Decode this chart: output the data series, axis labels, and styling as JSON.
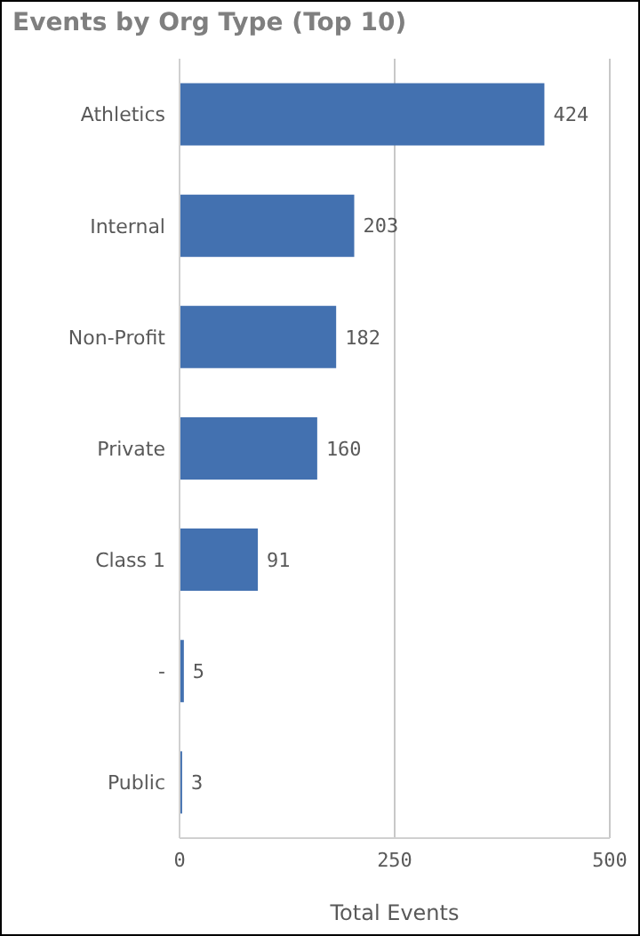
{
  "chart_data": {
    "type": "bar",
    "orientation": "horizontal",
    "title": "Events by Org Type (Top 10)",
    "xlabel": "Total Events",
    "categories": [
      "Athletics",
      "Internal",
      "Non-Profit",
      "Private",
      "Class 1",
      "-",
      "Public"
    ],
    "values": [
      424,
      203,
      182,
      160,
      91,
      5,
      3
    ],
    "color": "#4371b0",
    "xlim": [
      0,
      500
    ],
    "xticks": [
      0,
      250,
      500
    ],
    "grid": "x",
    "data_labels": true
  }
}
